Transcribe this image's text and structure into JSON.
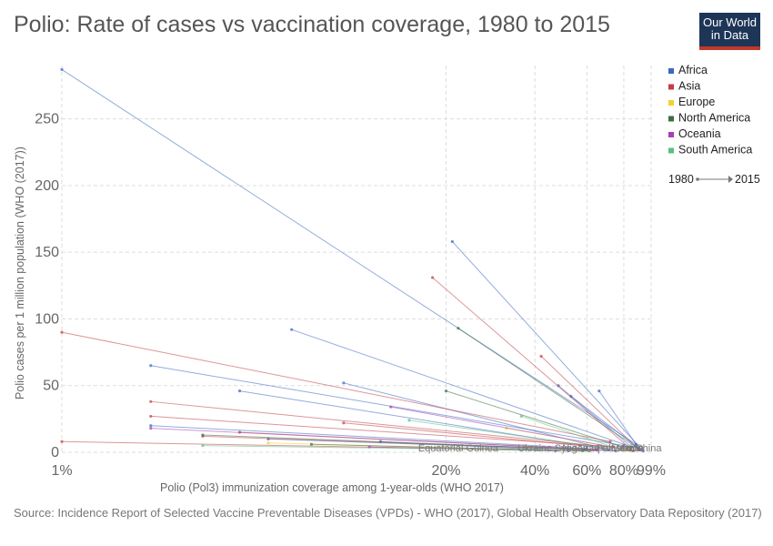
{
  "header": {
    "title": "Polio: Rate of cases vs vaccination coverage, 1980 to 2015",
    "logo_line1": "Our World",
    "logo_line2": "in Data"
  },
  "footer": {
    "source": "Incidence Report of Selected Vaccine Preventable Diseases (VPDs) - WHO (2017), Global Health Observatory Data Repository (2017)"
  },
  "colors": {
    "Africa": "#3b67c4",
    "Asia": "#c23e43",
    "Europe": "#f2d22e",
    "North America": "#3d6f3d",
    "Oceania": "#a341b6",
    "South America": "#5ac07f"
  },
  "chart_data": {
    "type": "scatter",
    "title": "Polio: Rate of cases vs vaccination coverage, 1980 to 2015",
    "xlabel": "Polio (Pol3) immunization coverage among 1-year-olds (WHO 2017)",
    "ylabel": "Polio cases per 1 million population (WHO (2017))",
    "x_scale": "log",
    "xlim": [
      1,
      99
    ],
    "ylim": [
      0,
      290
    ],
    "x_ticks": [
      "1%",
      "20%",
      "40%",
      "60%",
      "80%",
      "99%"
    ],
    "y_ticks": [
      "0",
      "50",
      "100",
      "150",
      "200",
      "250"
    ],
    "grid": true,
    "legend_position": "right",
    "legend": [
      "Africa",
      "Asia",
      "Europe",
      "North America",
      "Oceania",
      "South America"
    ],
    "time_legend": {
      "start": "1980",
      "end": "2015"
    },
    "country_labels": [
      {
        "label": "Equatorial Guinea",
        "x": 22,
        "y": 0
      },
      {
        "label": "Ukraine",
        "x": 40,
        "y": 0
      },
      {
        "label": "Syria",
        "x": 51,
        "y": 0
      },
      {
        "label": "Nigeria",
        "x": 56,
        "y": 0
      },
      {
        "label": "Iraq",
        "x": 62,
        "y": 0
      },
      {
        "label": "Pakistan",
        "x": 75,
        "y": 0
      },
      {
        "label": "Mexico",
        "x": 82,
        "y": 0
      },
      {
        "label": "India",
        "x": 86,
        "y": 0
      },
      {
        "label": "China",
        "x": 97,
        "y": 0
      }
    ],
    "series": [
      {
        "region": "Africa",
        "x1": 1,
        "y1": 287,
        "x2": 88,
        "y2": 6
      },
      {
        "region": "Africa",
        "x1": 21,
        "y1": 158,
        "x2": 93,
        "y2": 1
      },
      {
        "region": "Africa",
        "x1": 6,
        "y1": 92,
        "x2": 85,
        "y2": 4
      },
      {
        "region": "Africa",
        "x1": 2,
        "y1": 65,
        "x2": 80,
        "y2": 5
      },
      {
        "region": "Africa",
        "x1": 4,
        "y1": 46,
        "x2": 71,
        "y2": 2
      },
      {
        "region": "Africa",
        "x1": 9,
        "y1": 52,
        "x2": 68,
        "y2": 3
      },
      {
        "region": "Africa",
        "x1": 48,
        "y1": 50,
        "x2": 85,
        "y2": 4
      },
      {
        "region": "Africa",
        "x1": 53,
        "y1": 42,
        "x2": 91,
        "y2": 2
      },
      {
        "region": "Africa",
        "x1": 66,
        "y1": 46,
        "x2": 90,
        "y2": 3
      },
      {
        "region": "Africa",
        "x1": 2,
        "y1": 20,
        "x2": 60,
        "y2": 3
      },
      {
        "region": "Africa",
        "x1": 5,
        "y1": 10,
        "x2": 75,
        "y2": 1
      },
      {
        "region": "Africa",
        "x1": 12,
        "y1": 8,
        "x2": 52,
        "y2": 1
      },
      {
        "region": "Asia",
        "x1": 18,
        "y1": 131,
        "x2": 84,
        "y2": 3
      },
      {
        "region": "Asia",
        "x1": 1,
        "y1": 90,
        "x2": 72,
        "y2": 8
      },
      {
        "region": "Asia",
        "x1": 42,
        "y1": 72,
        "x2": 90,
        "y2": 2
      },
      {
        "region": "Asia",
        "x1": 2,
        "y1": 38,
        "x2": 79,
        "y2": 3
      },
      {
        "region": "Asia",
        "x1": 2,
        "y1": 27,
        "x2": 74,
        "y2": 4
      },
      {
        "region": "Asia",
        "x1": 4,
        "y1": 15,
        "x2": 65,
        "y2": 2
      },
      {
        "region": "Asia",
        "x1": 1,
        "y1": 8,
        "x2": 61,
        "y2": 1
      },
      {
        "region": "Asia",
        "x1": 9,
        "y1": 22,
        "x2": 57,
        "y2": 5
      },
      {
        "region": "Asia",
        "x1": 3,
        "y1": 12,
        "x2": 86,
        "y2": 1
      },
      {
        "region": "Europe",
        "x1": 5,
        "y1": 7,
        "x2": 55,
        "y2": 1
      },
      {
        "region": "Europe",
        "x1": 32,
        "y1": 18,
        "x2": 82,
        "y2": 2
      },
      {
        "region": "North America",
        "x1": 22,
        "y1": 93,
        "x2": 88,
        "y2": 4
      },
      {
        "region": "North America",
        "x1": 20,
        "y1": 46,
        "x2": 82,
        "y2": 3
      },
      {
        "region": "North America",
        "x1": 3,
        "y1": 13,
        "x2": 59,
        "y2": 2
      },
      {
        "region": "North America",
        "x1": 7,
        "y1": 6,
        "x2": 58,
        "y2": 1
      },
      {
        "region": "Oceania",
        "x1": 13,
        "y1": 34,
        "x2": 73,
        "y2": 4
      },
      {
        "region": "Oceania",
        "x1": 2,
        "y1": 18,
        "x2": 64,
        "y2": 2
      },
      {
        "region": "Oceania",
        "x1": 11,
        "y1": 4,
        "x2": 47,
        "y2": 1
      },
      {
        "region": "South America",
        "x1": 15,
        "y1": 24,
        "x2": 70,
        "y2": 3
      },
      {
        "region": "South America",
        "x1": 36,
        "y1": 27,
        "x2": 78,
        "y2": 2
      },
      {
        "region": "South America",
        "x1": 3,
        "y1": 5,
        "x2": 61,
        "y2": 1
      }
    ]
  }
}
